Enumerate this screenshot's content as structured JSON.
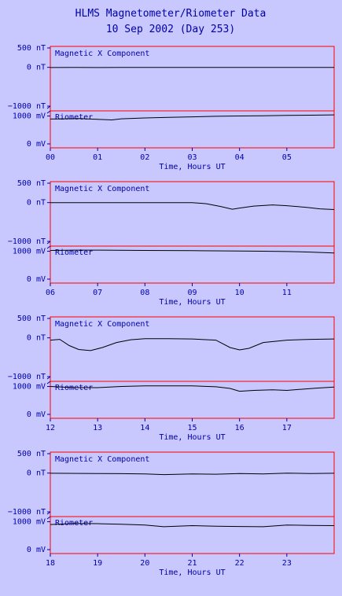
{
  "title": "HLMS Magnetometer/Riometer Data",
  "subtitle": "10 Sep 2002 (Day 253)",
  "colors": {
    "background": "#c8c8ff",
    "frame": "#ff0000",
    "text": "#0000aa",
    "trace": "#000000"
  },
  "labels": {
    "mag_panel": "Magnetic X Component",
    "rio_panel": "Riometer",
    "xlabel": "Time, Hours UT",
    "mag_ticks": [
      "500 nT",
      "0 nT",
      "−1000 nT"
    ],
    "rio_ticks": [
      "1000 mV",
      "0 mV"
    ]
  },
  "chart_data": [
    {
      "type": "line",
      "hours": [
        "00",
        "01",
        "02",
        "03",
        "04",
        "05"
      ],
      "x_range": [
        0,
        6
      ],
      "magnetic_ylim": [
        -1000,
        500
      ],
      "riometer_ylim": [
        0,
        1100
      ],
      "series": [
        {
          "name": "Magnetic X Component",
          "x": [
            0,
            0.5,
            1,
            1.5,
            2,
            2.5,
            3,
            3.5,
            4,
            4.5,
            5,
            5.5,
            6
          ],
          "y": [
            -5,
            0,
            -5,
            0,
            0,
            0,
            0,
            0,
            0,
            0,
            0,
            0,
            0
          ]
        },
        {
          "name": "Riometer",
          "x": [
            0,
            0.3,
            0.6,
            1,
            1.3,
            1.5,
            2,
            2.5,
            3,
            3.5,
            4,
            4.5,
            5,
            5.5,
            6
          ],
          "y": [
            890,
            900,
            910,
            880,
            860,
            900,
            930,
            950,
            970,
            990,
            1000,
            1010,
            1020,
            1030,
            1040
          ]
        }
      ]
    },
    {
      "type": "line",
      "hours": [
        "06",
        "07",
        "08",
        "09",
        "10",
        "11"
      ],
      "x_range": [
        6,
        12
      ],
      "magnetic_ylim": [
        -1000,
        500
      ],
      "riometer_ylim": [
        0,
        1100
      ],
      "series": [
        {
          "name": "Magnetic X Component",
          "x": [
            6,
            7,
            8,
            9,
            9.3,
            9.6,
            9.85,
            10,
            10.3,
            10.7,
            11,
            11.4,
            11.7,
            12
          ],
          "y": [
            0,
            0,
            0,
            0,
            -30,
            -100,
            -170,
            -140,
            -90,
            -60,
            -80,
            -120,
            -160,
            -180
          ]
        },
        {
          "name": "Riometer",
          "x": [
            6,
            6.5,
            7,
            8,
            9,
            10,
            10.5,
            11,
            11.5,
            12
          ],
          "y": [
            1030,
            1040,
            1040,
            1030,
            1020,
            1010,
            1000,
            990,
            970,
            940
          ]
        }
      ]
    },
    {
      "type": "line",
      "hours": [
        "12",
        "13",
        "14",
        "15",
        "16",
        "17"
      ],
      "x_range": [
        12,
        18
      ],
      "magnetic_ylim": [
        -1000,
        500
      ],
      "riometer_ylim": [
        0,
        1100
      ],
      "series": [
        {
          "name": "Magnetic X Component",
          "x": [
            12,
            12.2,
            12.4,
            12.6,
            12.85,
            13.1,
            13.4,
            13.7,
            14,
            14.5,
            15,
            15.5,
            15.8,
            16,
            16.2,
            16.5,
            17,
            17.5,
            18
          ],
          "y": [
            -60,
            -40,
            -200,
            -300,
            -330,
            -250,
            -120,
            -50,
            -20,
            -20,
            -30,
            -60,
            -250,
            -310,
            -270,
            -120,
            -60,
            -40,
            -30
          ]
        },
        {
          "name": "Riometer",
          "x": [
            12,
            12.5,
            13,
            13.5,
            14,
            14.5,
            15,
            15.5,
            15.8,
            16,
            16.3,
            16.7,
            17,
            17.3,
            17.6,
            18
          ],
          "y": [
            1000,
            960,
            960,
            1000,
            1020,
            1020,
            1020,
            990,
            930,
            830,
            860,
            880,
            860,
            900,
            940,
            980
          ]
        }
      ]
    },
    {
      "type": "line",
      "hours": [
        "18",
        "19",
        "20",
        "21",
        "22",
        "23"
      ],
      "x_range": [
        18,
        24
      ],
      "magnetic_ylim": [
        -1000,
        500
      ],
      "riometer_ylim": [
        0,
        1100
      ],
      "series": [
        {
          "name": "Magnetic X Component",
          "x": [
            18,
            19,
            19.5,
            20,
            20.4,
            21,
            21.5,
            22,
            22.5,
            23,
            23.5,
            24
          ],
          "y": [
            -5,
            -10,
            -15,
            -20,
            -40,
            -20,
            -30,
            -10,
            -20,
            0,
            -10,
            -5
          ]
        },
        {
          "name": "Riometer",
          "x": [
            18,
            18.5,
            19,
            19.5,
            20,
            20.4,
            21,
            21.5,
            22,
            22.5,
            23,
            23.5,
            24
          ],
          "y": [
            900,
            940,
            930,
            910,
            880,
            820,
            860,
            840,
            830,
            820,
            880,
            870,
            860
          ]
        }
      ]
    }
  ]
}
